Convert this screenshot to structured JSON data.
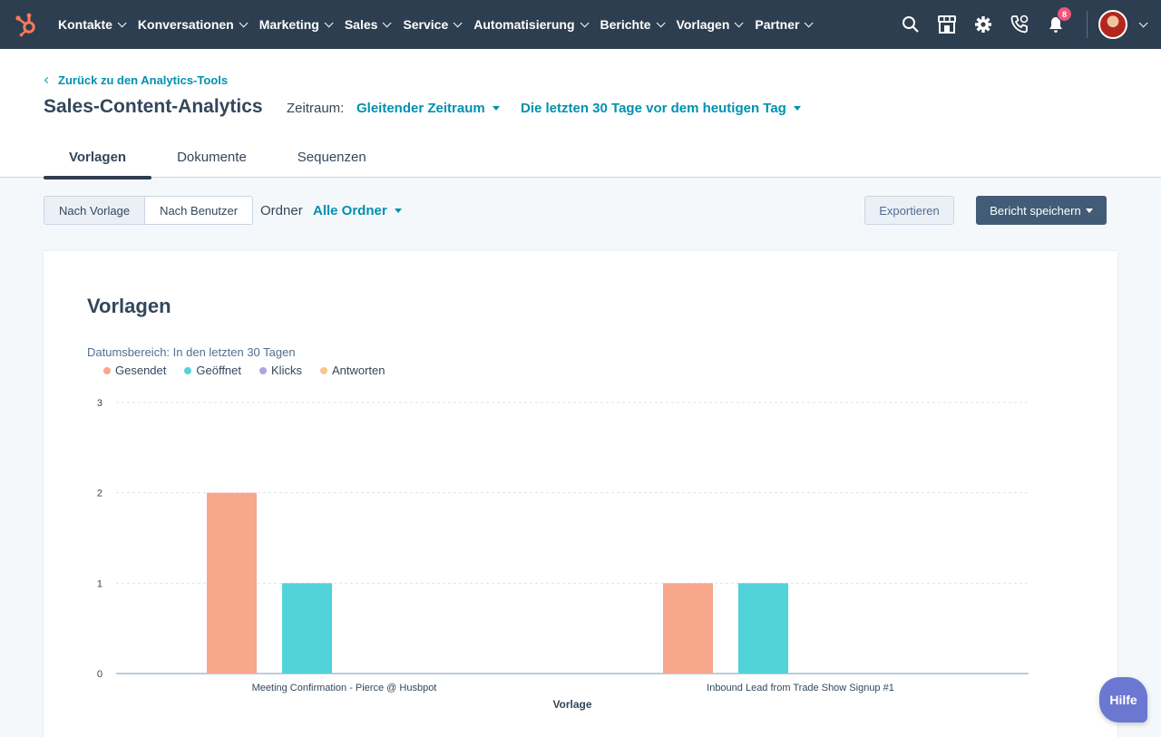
{
  "nav": {
    "items": [
      "Kontakte",
      "Konversationen",
      "Marketing",
      "Sales",
      "Service",
      "Automatisierung",
      "Berichte",
      "Vorlagen",
      "Partner"
    ],
    "notification_count": "8",
    "icons": [
      "search-icon",
      "marketplace-icon",
      "settings-icon",
      "calling-icon",
      "notifications-icon"
    ]
  },
  "header": {
    "back_link": "Zurück zu den Analytics-Tools",
    "title": "Sales-Content-Analytics",
    "zeitraum_label": "Zeitraum:",
    "zeitraum_value": "Gleitender Zeitraum",
    "range_value": "Die letzten 30 Tage vor dem heutigen Tag"
  },
  "tabs": [
    {
      "label": "Vorlagen",
      "active": true
    },
    {
      "label": "Dokumente",
      "active": false
    },
    {
      "label": "Sequenzen",
      "active": false
    }
  ],
  "toolbar": {
    "by_template": "Nach Vorlage",
    "by_user": "Nach Benutzer",
    "ordner_label": "Ordner",
    "ordner_value": "Alle Ordner",
    "export": "Exportieren",
    "save": "Bericht speichern"
  },
  "card": {
    "title": "Vorlagen",
    "date_range": "Datumsbereich: In den letzten 30 Tagen"
  },
  "chart_data": {
    "type": "bar",
    "title": "",
    "xlabel": "Vorlage",
    "ylabel": "",
    "ylim": [
      0,
      3
    ],
    "yticks": [
      0,
      1,
      2,
      3
    ],
    "grid": true,
    "legend_position": "top-left",
    "categories": [
      "Meeting Confirmation - Pierce @ Husbpot",
      "Inbound Lead from Trade Show Signup #1"
    ],
    "series": [
      {
        "name": "Gesendet",
        "color": "#f8a68c",
        "values": [
          2,
          1
        ]
      },
      {
        "name": "Geöffnet",
        "color": "#51d3d9",
        "values": [
          1,
          1
        ]
      },
      {
        "name": "Klicks",
        "color": "#b4a2e0",
        "values": [
          0,
          0
        ]
      },
      {
        "name": "Antworten",
        "color": "#f5c78e",
        "values": [
          0,
          0
        ]
      }
    ]
  },
  "help": "Hilfe"
}
